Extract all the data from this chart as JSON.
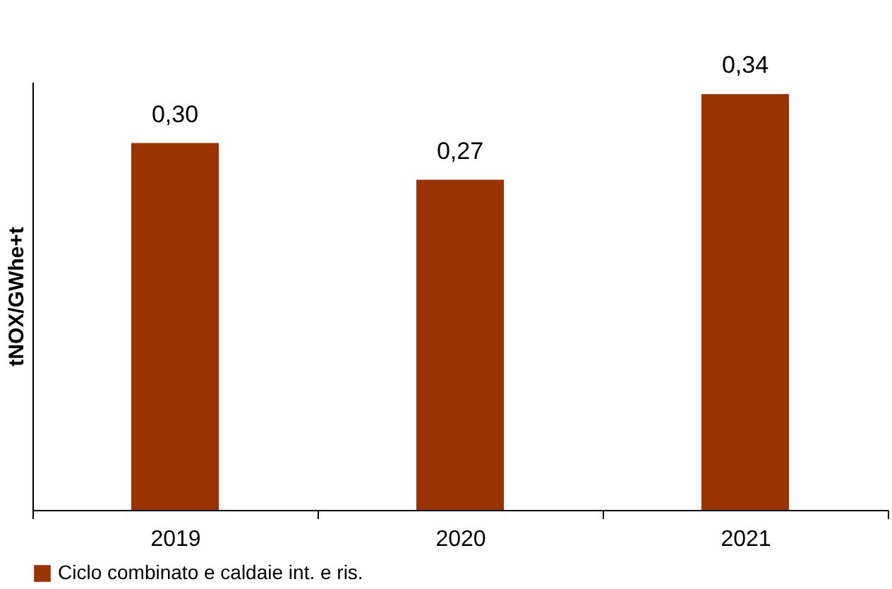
{
  "chart_data": {
    "type": "bar",
    "ylabel": "tNOX/GWhe+t",
    "categories": [
      "2019",
      "2020",
      "2021"
    ],
    "series": [
      {
        "name": "Ciclo combinato e caldaie int. e ris.",
        "color": "#993300",
        "values": [
          0.3,
          0.27,
          0.34
        ],
        "value_labels": [
          "0,30",
          "0,27",
          "0,34"
        ]
      }
    ],
    "grid": false,
    "legend": "bottom"
  }
}
